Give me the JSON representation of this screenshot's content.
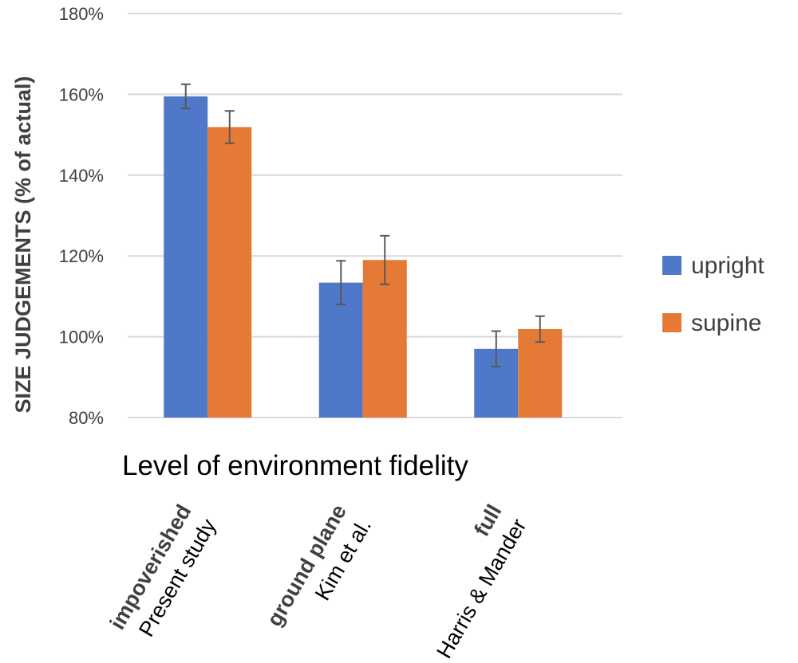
{
  "chart_data": {
    "type": "bar",
    "categories": [
      {
        "name": "impoverished",
        "source": "Present study"
      },
      {
        "name": "ground plane",
        "source": "Kim et al."
      },
      {
        "name": "full",
        "source": "Harris & Mander"
      }
    ],
    "series": [
      {
        "name": "upright",
        "color": "#4F78C9",
        "values": [
          159.5,
          113.4,
          97.0
        ],
        "errors": [
          3.0,
          5.4,
          4.4
        ]
      },
      {
        "name": "supine",
        "color": "#E57A37",
        "values": [
          151.9,
          119.0,
          101.9
        ],
        "errors": [
          4.0,
          6.0,
          3.2
        ]
      }
    ],
    "xlabel": "Level of environment fidelity",
    "ylabel": "SIZE JUDGEMENTS (% of actual)",
    "ylim": [
      80,
      180
    ],
    "yticks": [
      "80%",
      "100%",
      "120%",
      "140%",
      "160%",
      "180%"
    ],
    "ytick_values": [
      80,
      100,
      120,
      140,
      160,
      180
    ],
    "grid": true,
    "legend_position": "right",
    "gridline_color": "#D9D9D9",
    "errorbar_color": "#595959"
  }
}
